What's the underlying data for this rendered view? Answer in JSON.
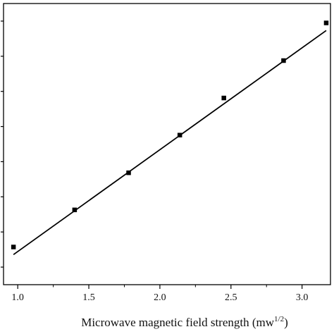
{
  "chart_data": {
    "type": "scatter",
    "xlabel_text": "Microwave magnetic field strength (mw",
    "xlabel_sup": "1/2",
    "xlabel_close": ")",
    "ylabel": "",
    "xlim": [
      0.9,
      3.2
    ],
    "ylim": [
      0,
      1
    ],
    "x_ticks": [
      1.0,
      1.5,
      2.0,
      2.5,
      3.0
    ],
    "x_tick_labels": [
      "1.0",
      "1.5",
      "2.0",
      "2.5",
      "3.0"
    ],
    "y_ticks_count": 8,
    "grid": false,
    "legend": "none",
    "series": [
      {
        "kind": "points",
        "marker": "square",
        "color": "#000000",
        "points": [
          {
            "x": 0.97,
            "y": 0.134
          },
          {
            "x": 1.4,
            "y": 0.266
          },
          {
            "x": 1.78,
            "y": 0.398
          },
          {
            "x": 2.14,
            "y": 0.532
          },
          {
            "x": 2.45,
            "y": 0.664
          },
          {
            "x": 2.87,
            "y": 0.797
          },
          {
            "x": 3.17,
            "y": 0.931
          }
        ]
      },
      {
        "kind": "fit-line",
        "color": "#000000",
        "from": {
          "x": 0.97,
          "y": 0.107
        },
        "to": {
          "x": 3.17,
          "y": 0.904
        }
      }
    ]
  }
}
